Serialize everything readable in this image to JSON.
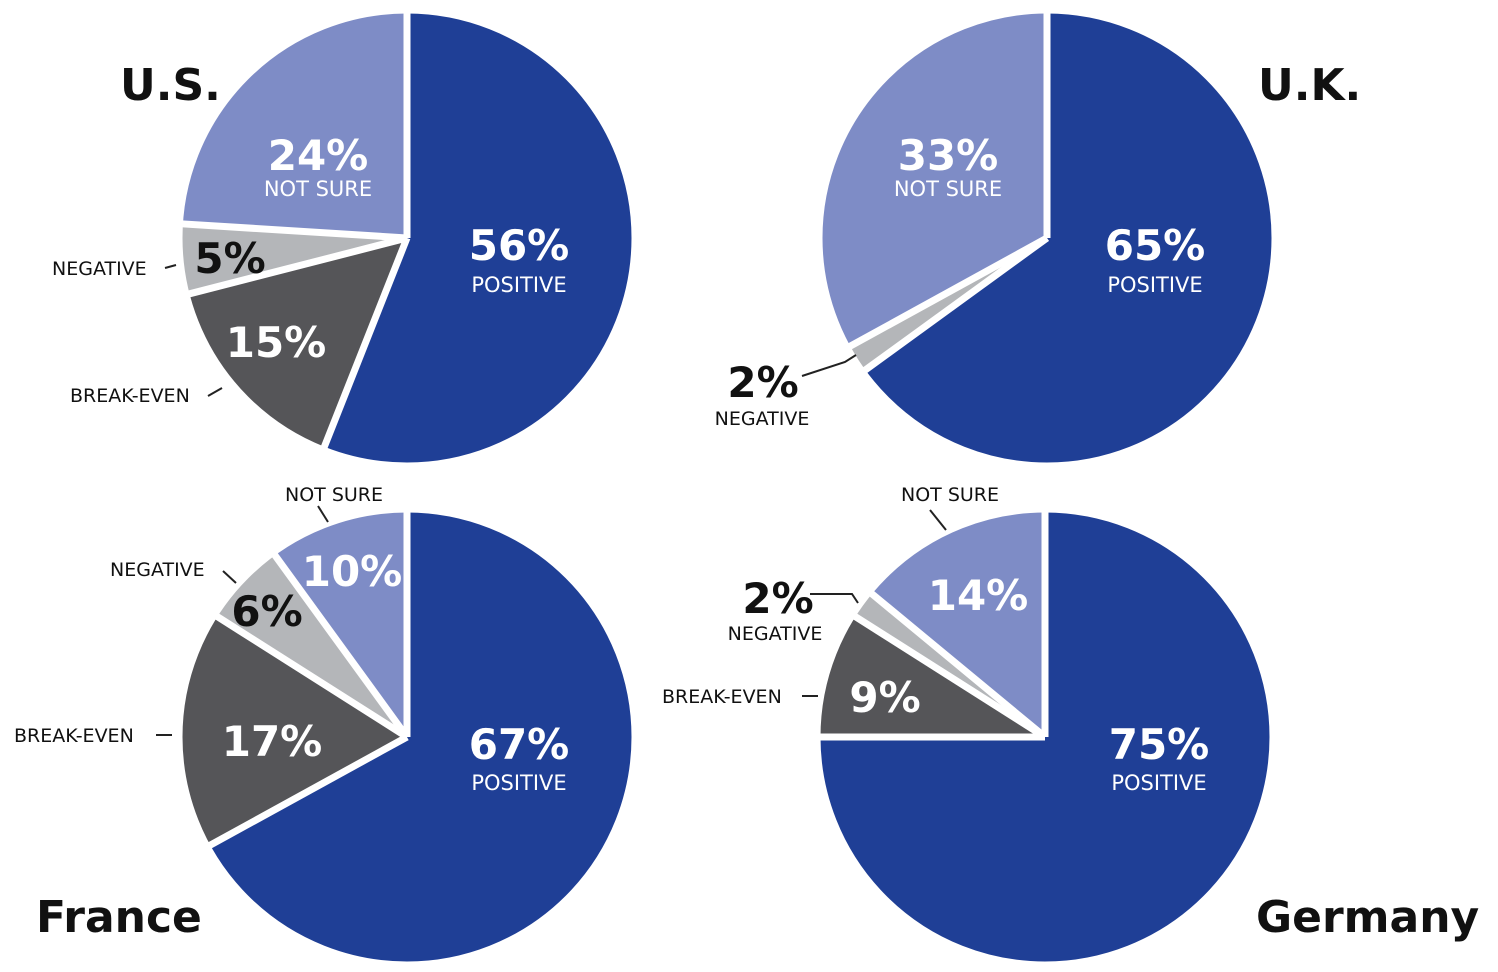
{
  "colors": {
    "positive": "#1f3f96",
    "not_sure": "#7e8cc6",
    "negative": "#b4b6b9",
    "break_even": "#555558",
    "separator": "#ffffff",
    "inside_text": "#ffffff",
    "dark_text": "#111111"
  },
  "chart_data": [
    {
      "type": "pie",
      "title": "U.S.",
      "slices": [
        {
          "key": "positive",
          "label": "POSITIVE",
          "value": 56,
          "display": "56%"
        },
        {
          "key": "break_even",
          "label": "BREAK-EVEN",
          "value": 15,
          "display": "15%"
        },
        {
          "key": "negative",
          "label": "NEGATIVE",
          "value": 5,
          "display": "5%"
        },
        {
          "key": "not_sure",
          "label": "NOT SURE",
          "value": 24,
          "display": "24%"
        }
      ]
    },
    {
      "type": "pie",
      "title": "U.K.",
      "slices": [
        {
          "key": "positive",
          "label": "POSITIVE",
          "value": 65,
          "display": "65%"
        },
        {
          "key": "negative",
          "label": "NEGATIVE",
          "value": 2,
          "display": "2%"
        },
        {
          "key": "not_sure",
          "label": "NOT SURE",
          "value": 33,
          "display": "33%"
        }
      ]
    },
    {
      "type": "pie",
      "title": "France",
      "slices": [
        {
          "key": "positive",
          "label": "POSITIVE",
          "value": 67,
          "display": "67%"
        },
        {
          "key": "break_even",
          "label": "BREAK-EVEN",
          "value": 17,
          "display": "17%"
        },
        {
          "key": "negative",
          "label": "NEGATIVE",
          "value": 6,
          "display": "6%"
        },
        {
          "key": "not_sure",
          "label": "NOT SURE",
          "value": 10,
          "display": "10%"
        }
      ]
    },
    {
      "type": "pie",
      "title": "Germany",
      "slices": [
        {
          "key": "positive",
          "label": "POSITIVE",
          "value": 75,
          "display": "75%"
        },
        {
          "key": "break_even",
          "label": "BREAK-EVEN",
          "value": 9,
          "display": "9%"
        },
        {
          "key": "negative",
          "label": "NEGATIVE",
          "value": 2,
          "display": "2%"
        },
        {
          "key": "not_sure",
          "label": "NOT SURE",
          "value": 14,
          "display": "14%"
        }
      ]
    }
  ]
}
